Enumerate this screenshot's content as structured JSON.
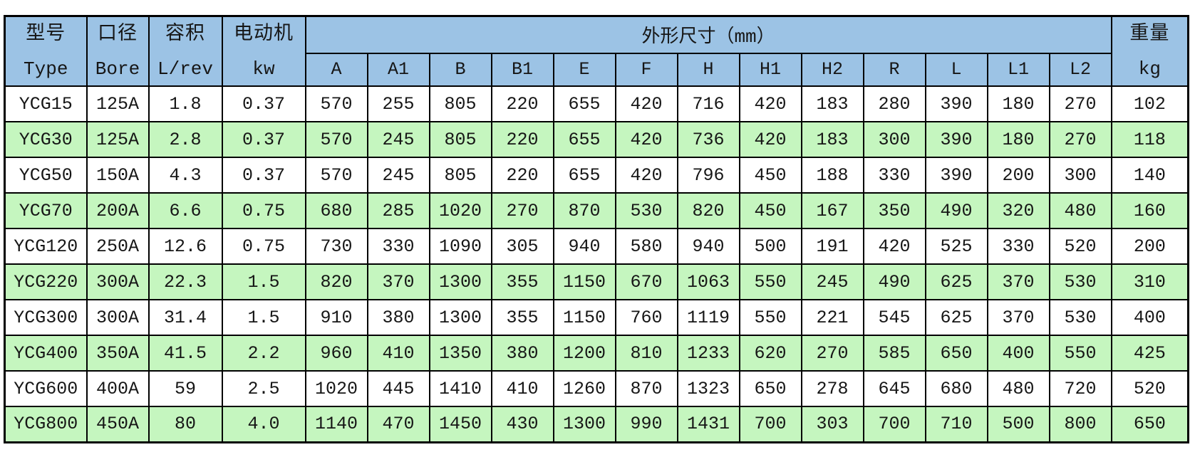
{
  "table": {
    "header": {
      "col_groups": [
        {
          "zh": "型号",
          "en": "Type"
        },
        {
          "zh": "口径",
          "en": "Bore"
        },
        {
          "zh": "容积",
          "en": "L/rev"
        },
        {
          "zh": "电动机",
          "en": "kw"
        }
      ],
      "dims_title": "外形尺寸（mm）",
      "dim_cols": [
        "A",
        "A1",
        "B",
        "B1",
        "E",
        "F",
        "H",
        "H1",
        "H2",
        "R",
        "L",
        "L1",
        "L2"
      ],
      "weight": {
        "zh": "重量",
        "en": "kg"
      }
    },
    "rows": [
      [
        "YCG15",
        "125A",
        "1.8",
        "0.37",
        "570",
        "255",
        "805",
        "220",
        "655",
        "420",
        "716",
        "420",
        "183",
        "280",
        "390",
        "180",
        "270",
        "102"
      ],
      [
        "YCG30",
        "125A",
        "2.8",
        "0.37",
        "570",
        "245",
        "805",
        "220",
        "655",
        "420",
        "736",
        "420",
        "183",
        "300",
        "390",
        "180",
        "270",
        "118"
      ],
      [
        "YCG50",
        "150A",
        "4.3",
        "0.37",
        "570",
        "245",
        "805",
        "220",
        "655",
        "420",
        "796",
        "450",
        "188",
        "330",
        "390",
        "200",
        "300",
        "140"
      ],
      [
        "YCG70",
        "200A",
        "6.6",
        "0.75",
        "680",
        "285",
        "1020",
        "270",
        "870",
        "530",
        "820",
        "450",
        "167",
        "350",
        "490",
        "320",
        "480",
        "160"
      ],
      [
        "YCG120",
        "250A",
        "12.6",
        "0.75",
        "730",
        "330",
        "1090",
        "305",
        "940",
        "580",
        "940",
        "500",
        "191",
        "420",
        "525",
        "330",
        "520",
        "200"
      ],
      [
        "YCG220",
        "300A",
        "22.3",
        "1.5",
        "820",
        "370",
        "1300",
        "355",
        "1150",
        "670",
        "1063",
        "550",
        "245",
        "490",
        "625",
        "370",
        "530",
        "310"
      ],
      [
        "YCG300",
        "300A",
        "31.4",
        "1.5",
        "910",
        "380",
        "1300",
        "355",
        "1150",
        "760",
        "1119",
        "550",
        "221",
        "545",
        "625",
        "370",
        "530",
        "400"
      ],
      [
        "YCG400",
        "350A",
        "41.5",
        "2.2",
        "960",
        "410",
        "1350",
        "380",
        "1200",
        "810",
        "1233",
        "620",
        "270",
        "585",
        "650",
        "400",
        "550",
        "425"
      ],
      [
        "YCG600",
        "400A",
        "59",
        "2.5",
        "1020",
        "445",
        "1410",
        "410",
        "1260",
        "870",
        "1323",
        "650",
        "278",
        "645",
        "680",
        "480",
        "720",
        "520"
      ],
      [
        "YCG800",
        "450A",
        "80",
        "4.0",
        "1140",
        "470",
        "1450",
        "430",
        "1300",
        "990",
        "1431",
        "700",
        "303",
        "700",
        "710",
        "500",
        "800",
        "650"
      ]
    ]
  },
  "colors": {
    "header_bg": "#9CC3E5",
    "row_alt_bg": "#C5F6BF",
    "border": "#000000"
  }
}
